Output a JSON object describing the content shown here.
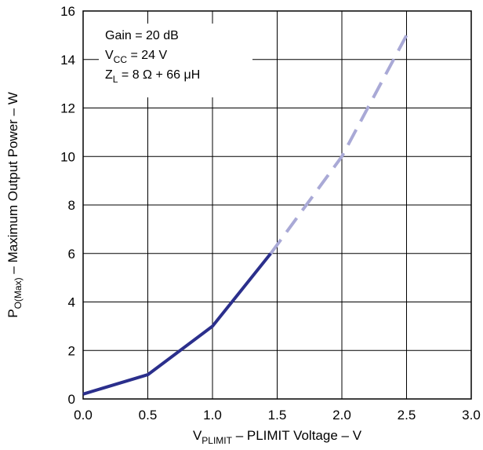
{
  "chart_data": {
    "type": "line",
    "x_axis": {
      "label_main": "V",
      "label_sub": "PLIMIT",
      "label_rest": " – PLIMIT Voltage – V",
      "range": [
        0.0,
        3.0
      ],
      "ticks": [
        0.0,
        0.5,
        1.0,
        1.5,
        2.0,
        2.5,
        3.0
      ],
      "tick_labels": [
        "0.0",
        "0.5",
        "1.0",
        "1.5",
        "2.0",
        "2.5",
        "3.0"
      ]
    },
    "y_axis": {
      "label_main": "P",
      "label_sub": "O(Max)",
      "label_rest": " – Maximum Output Power – W",
      "range": [
        0,
        16
      ],
      "ticks": [
        0,
        2,
        4,
        6,
        8,
        10,
        12,
        14,
        16
      ],
      "tick_labels": [
        "0",
        "2",
        "4",
        "6",
        "8",
        "10",
        "12",
        "14",
        "16"
      ]
    },
    "grid": true,
    "annotations": {
      "gain": "Gain = 20 dB",
      "vcc_main": "V",
      "vcc_sub": "CC",
      "vcc_rest": " = 24 V",
      "zl_main": "Z",
      "zl_sub": "L",
      "zl_rest": " = 8 Ω + 66 μH"
    },
    "series": [
      {
        "style": "solid",
        "color": "#2b2f8c",
        "x": [
          0.0,
          0.5,
          1.0,
          1.45
        ],
        "y": [
          0.2,
          1.0,
          3.0,
          6.0
        ]
      },
      {
        "style": "dashed",
        "color": "#a9a9d6",
        "x": [
          1.45,
          2.0,
          2.5
        ],
        "y": [
          6.0,
          10.0,
          15.0
        ]
      }
    ]
  }
}
